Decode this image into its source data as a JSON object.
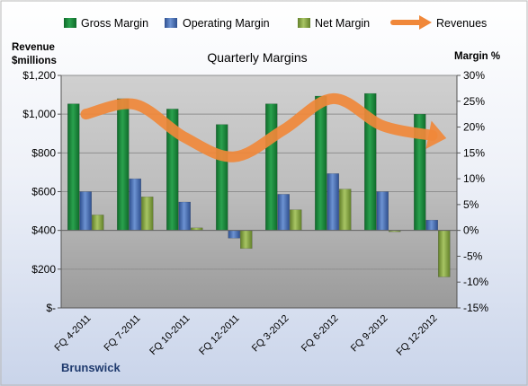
{
  "chart_data": {
    "type": "bar",
    "title": "Quarterly Margins",
    "company": "Brunswick",
    "left_axis_label": [
      "Revenue",
      "$millions"
    ],
    "right_axis_label": "Margin %",
    "categories": [
      "FQ 4-2011",
      "FQ 7-2011",
      "FQ 10-2011",
      "FQ 12-2011",
      "FQ 3-2012",
      "FQ 6-2012",
      "FQ 9-2012",
      "FQ 12-2012"
    ],
    "left_axis": {
      "min": 0,
      "max": 1200,
      "step": 200,
      "tick_labels": [
        "$-",
        "$200",
        "$400",
        "$600",
        "$800",
        "$1,000",
        "$1,200"
      ]
    },
    "right_axis": {
      "min": -15,
      "max": 30,
      "step": 5,
      "tick_labels": [
        "-15%",
        "-10%",
        "-5%",
        "0%",
        "5%",
        "10%",
        "15%",
        "20%",
        "25%",
        "30%"
      ]
    },
    "series": [
      {
        "name": "Gross Margin",
        "type": "bar",
        "axis": "right",
        "color": "#1e8a3c",
        "values": [
          24.5,
          25.5,
          23.5,
          20.5,
          24.5,
          26.0,
          26.5,
          22.5
        ]
      },
      {
        "name": "Operating Margin",
        "type": "bar",
        "axis": "right",
        "color": "#4a72b8",
        "values": [
          7.5,
          10.0,
          5.5,
          -1.5,
          7.0,
          11.0,
          7.5,
          2.0
        ]
      },
      {
        "name": "Net Margin",
        "type": "bar",
        "axis": "right",
        "color": "#8aab4a",
        "values": [
          3.0,
          6.5,
          0.5,
          -3.5,
          4.0,
          8.0,
          0.0,
          -9.0
        ]
      },
      {
        "name": "Revenues",
        "type": "line",
        "axis": "left",
        "color": "#f0883a",
        "values": [
          1000,
          1050,
          880,
          780,
          920,
          1080,
          940,
          890
        ]
      }
    ],
    "grid": true,
    "legend": "top"
  }
}
